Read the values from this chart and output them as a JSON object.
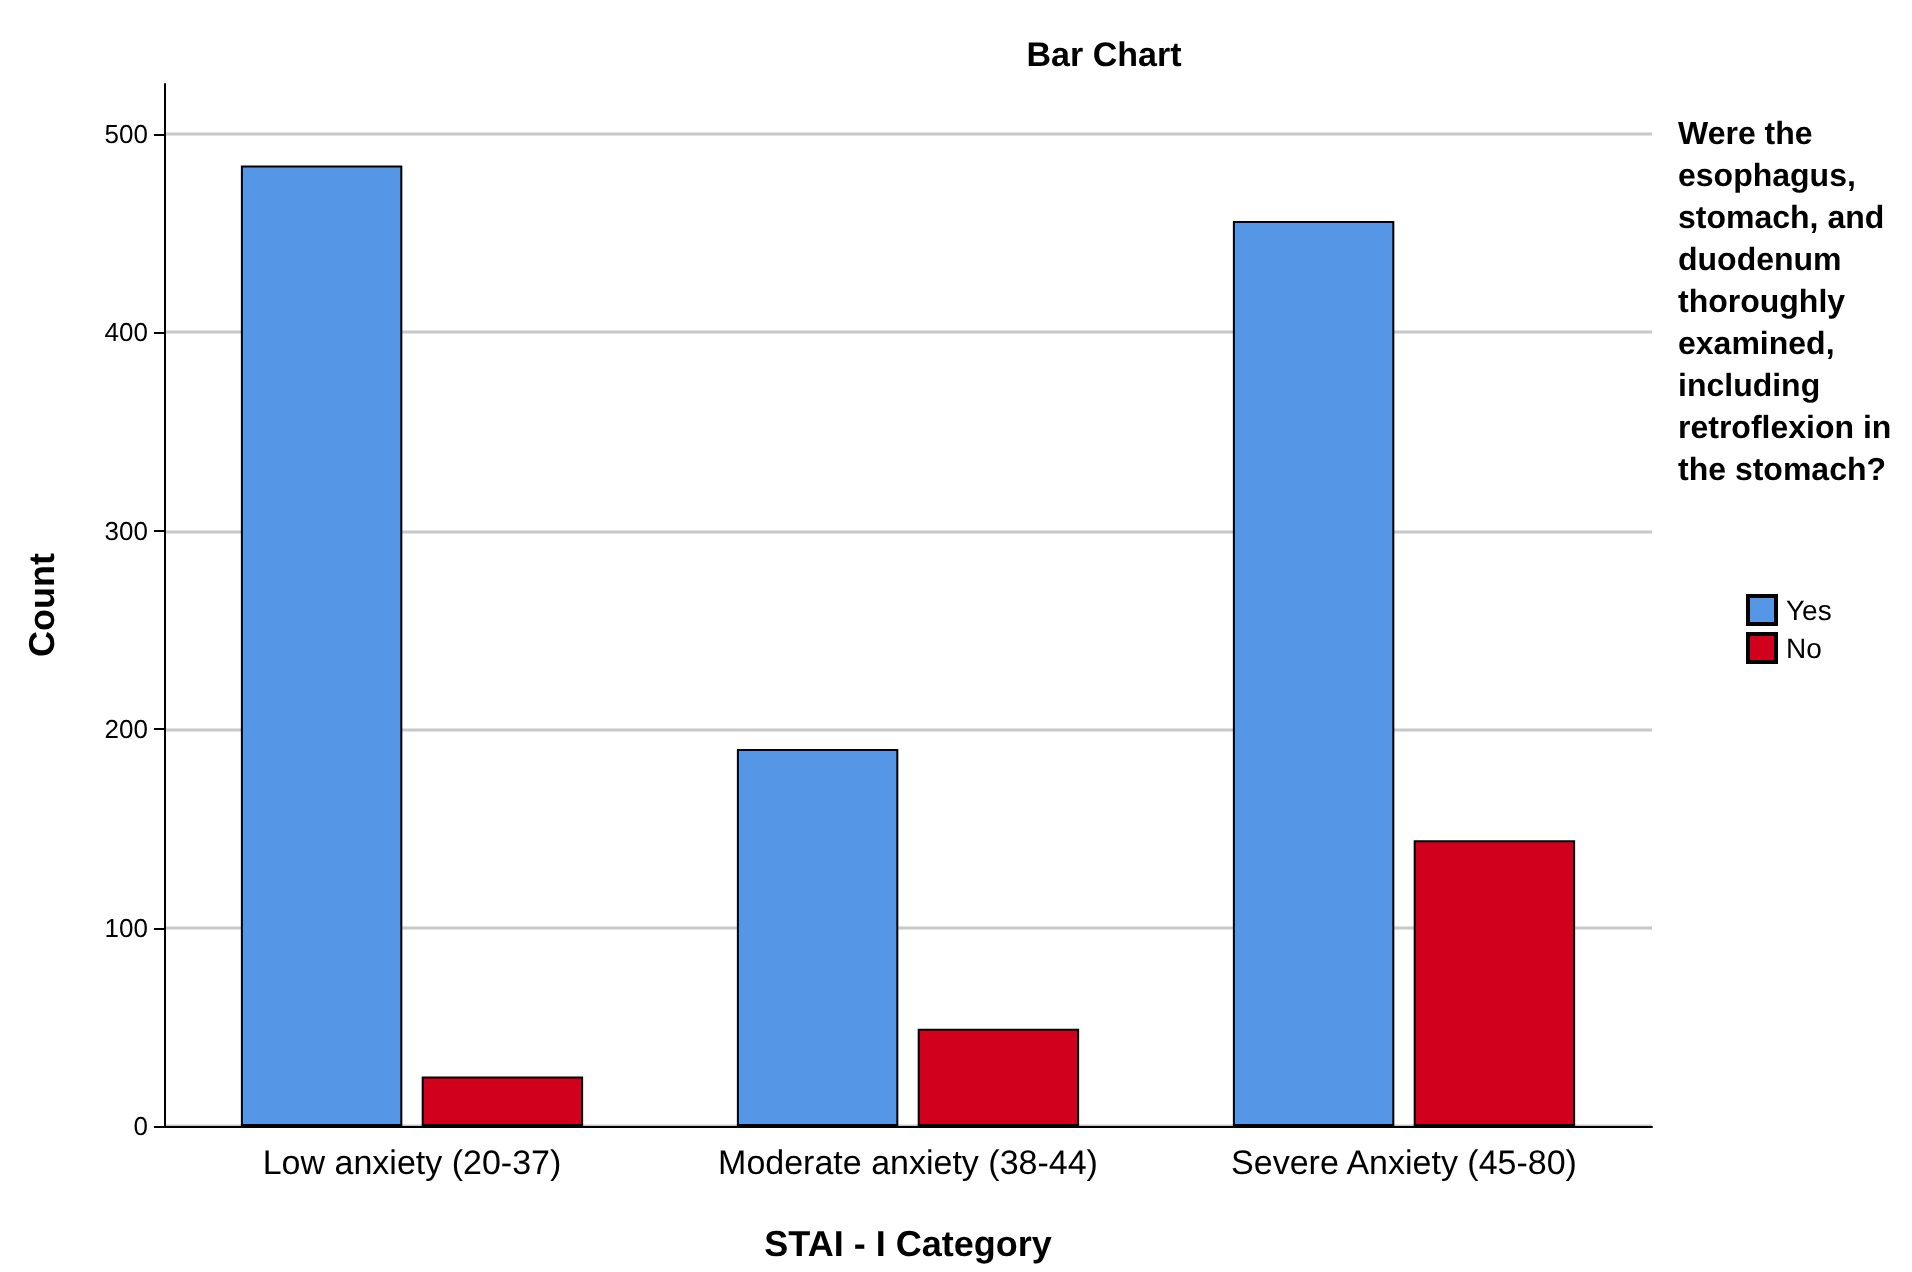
{
  "chart_data": {
    "type": "bar",
    "title": "Bar Chart",
    "xlabel": "STAI - I Category",
    "ylabel": "Count",
    "legend_title": "Were the esophagus, stomach, and duodenum thoroughly examined, including retroflexion in the stomach?",
    "categories": [
      "Low anxiety (20-37)",
      "Moderate anxiety (38-44)",
      "Severe Anxiety (45-80)"
    ],
    "series": [
      {
        "name": "Yes",
        "color": "#5596e6",
        "values": [
          484,
          190,
          456
        ]
      },
      {
        "name": "No",
        "color": "#d1001c",
        "values": [
          25,
          49,
          144
        ]
      }
    ],
    "ylim": [
      0,
      525
    ],
    "yticks": [
      0,
      100,
      200,
      300,
      400,
      500
    ],
    "grid": "y",
    "legend": "right"
  }
}
